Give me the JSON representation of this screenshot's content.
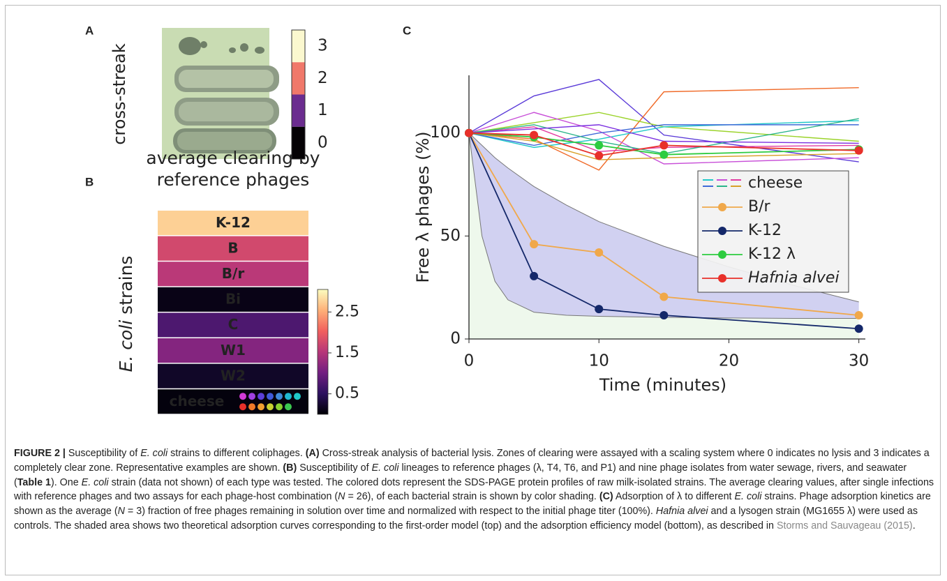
{
  "panel_a": {
    "label": "A",
    "ylabel": "cross-streak",
    "levels": [
      3,
      2,
      1,
      0
    ],
    "level_colors": [
      "#fbf8cf",
      "#f0786a",
      "#6b2c8f",
      "#050205"
    ]
  },
  "panel_b": {
    "label": "B",
    "title": [
      "average clearing by",
      "reference phages"
    ],
    "ylabel": [
      "E. coli",
      " strains"
    ],
    "rows": [
      "K-12",
      "B",
      "B/r",
      "Bi",
      "C",
      "W1",
      "W2",
      "cheese"
    ],
    "values": [
      2.75,
      1.75,
      1.55,
      0.1,
      0.75,
      1.15,
      0.2,
      0.05
    ],
    "clim": [
      0,
      3.05
    ],
    "cticks": [
      0.5,
      1.5,
      2.5
    ],
    "colormap": [
      "#000004",
      "#2c115f",
      "#721f81",
      "#b73779",
      "#f1605d",
      "#feb078",
      "#fcfdbf"
    ],
    "dot_colors": [
      "#d23bd6",
      "#a040e0",
      "#5b3fd9",
      "#3f5ad8",
      "#3f8ad8",
      "#1fb8d0",
      "#1fc8c8",
      "#e8302a",
      "#f07a28",
      "#f0a030",
      "#c8d030",
      "#8ad030",
      "#3cc850"
    ]
  },
  "chart_data": {
    "type": "line",
    "label": "C",
    "xlabel": "Time (minutes)",
    "ylabel": "Free λ phages (%)",
    "x": [
      0,
      5,
      10,
      15,
      30
    ],
    "xlim": [
      0,
      30.5
    ],
    "ylim": [
      0,
      128
    ],
    "xticks": [
      0,
      10,
      20,
      30
    ],
    "yticks": [
      0,
      50,
      100
    ],
    "cheese": {
      "name": "cheese",
      "series": [
        {
          "color": "#5a3ad8",
          "values": [
            100,
            118,
            126,
            99,
            86
          ]
        },
        {
          "color": "#f06a28",
          "values": [
            100,
            97,
            82,
            120,
            122
          ]
        },
        {
          "color": "#9bd32a",
          "values": [
            100,
            105,
            110,
            103,
            96
          ]
        },
        {
          "color": "#1fc8c8",
          "values": [
            100,
            93,
            97,
            103,
            106
          ]
        },
        {
          "color": "#c84fd8",
          "values": [
            100,
            110,
            101,
            85,
            88
          ]
        },
        {
          "color": "#e23aa0",
          "values": [
            100,
            103,
            91,
            93,
            94
          ]
        },
        {
          "color": "#3f6ad8",
          "values": [
            100,
            94,
            100,
            104,
            104
          ]
        },
        {
          "color": "#2ab48a",
          "values": [
            100,
            104,
            96,
            90,
            107
          ]
        },
        {
          "color": "#d8a028",
          "values": [
            100,
            96,
            87,
            88,
            90
          ]
        },
        {
          "color": "#7b2fe0",
          "values": [
            100,
            102,
            104,
            96,
            95
          ]
        }
      ]
    },
    "series": [
      {
        "name": "B/r",
        "color": "#f0a84a",
        "values": [
          100,
          46,
          42,
          20.5,
          11.5
        ]
      },
      {
        "name": "K-12",
        "color": "#14286a",
        "values": [
          100,
          30.5,
          14.5,
          11.5,
          5
        ]
      },
      {
        "name": "K-12 λ",
        "color": "#2ecc40",
        "values": [
          100,
          98,
          94,
          89.5,
          92
        ]
      },
      {
        "name": "Hafnia alvei",
        "color": "#e8302a",
        "values": [
          100,
          99,
          89,
          94,
          91.5
        ]
      }
    ],
    "band": {
      "x": [
        0,
        1,
        2,
        3,
        5,
        7.5,
        10,
        15,
        20,
        25,
        30
      ],
      "upper": [
        100,
        94,
        88,
        83,
        74,
        65,
        57,
        45,
        35,
        26,
        18
      ],
      "lower": [
        100,
        50,
        28,
        19,
        13,
        11.5,
        11,
        10.5,
        10.2,
        10,
        10
      ]
    }
  },
  "caption": {
    "runs": [
      {
        "text": "FIGURE 2 |",
        "b": true
      },
      {
        "text": " Susceptibility of "
      },
      {
        "text": "E. coli",
        "i": true
      },
      {
        "text": " strains to different coliphages. "
      },
      {
        "text": "(A)",
        "b": true
      },
      {
        "text": " Cross-streak analysis of bacterial lysis. Zones of clearing were assayed with a scaling system where 0 indicates no lysis and 3 indicates a completely clear zone. Representative examples are shown. "
      },
      {
        "text": "(B)",
        "b": true
      },
      {
        "text": " Susceptibility of "
      },
      {
        "text": "E. coli",
        "i": true
      },
      {
        "text": " lineages to reference phages (λ, T4, T6, and P1) and nine phage isolates from water sewage, rivers, and seawater ("
      },
      {
        "text": "Table 1",
        "b": true
      },
      {
        "text": "). One "
      },
      {
        "text": "E. coli",
        "i": true
      },
      {
        "text": " strain (data not shown) of each type was tested. The colored dots represent the SDS-PAGE protein profiles of raw milk-isolated strains. The average clearing values, after single infections with reference phages and two assays for each phage-host combination ("
      },
      {
        "text": "N",
        "i": true
      },
      {
        "text": " = 26), of each bacterial strain is shown by color shading. "
      },
      {
        "text": "(C)",
        "b": true
      },
      {
        "text": " Adsorption of λ to different "
      },
      {
        "text": "E. coli",
        "i": true
      },
      {
        "text": " strains. Phage adsorption kinetics are shown as the average ("
      },
      {
        "text": "N",
        "i": true
      },
      {
        "text": " = 3) fraction of free phages remaining in solution over time and normalized with respect to the initial phage titer (100%). "
      },
      {
        "text": "Hafnia alvei",
        "i": true
      },
      {
        "text": " and a lysogen strain (MG1655 λ) were used as controls. The shaded area shows two theoretical adsorption curves corresponding to the first-order model (top) and the adsorption efficiency model (bottom), as described in "
      },
      {
        "text": "Storms and Sauvageau (2015)",
        "link": true
      },
      {
        "text": "."
      }
    ]
  }
}
